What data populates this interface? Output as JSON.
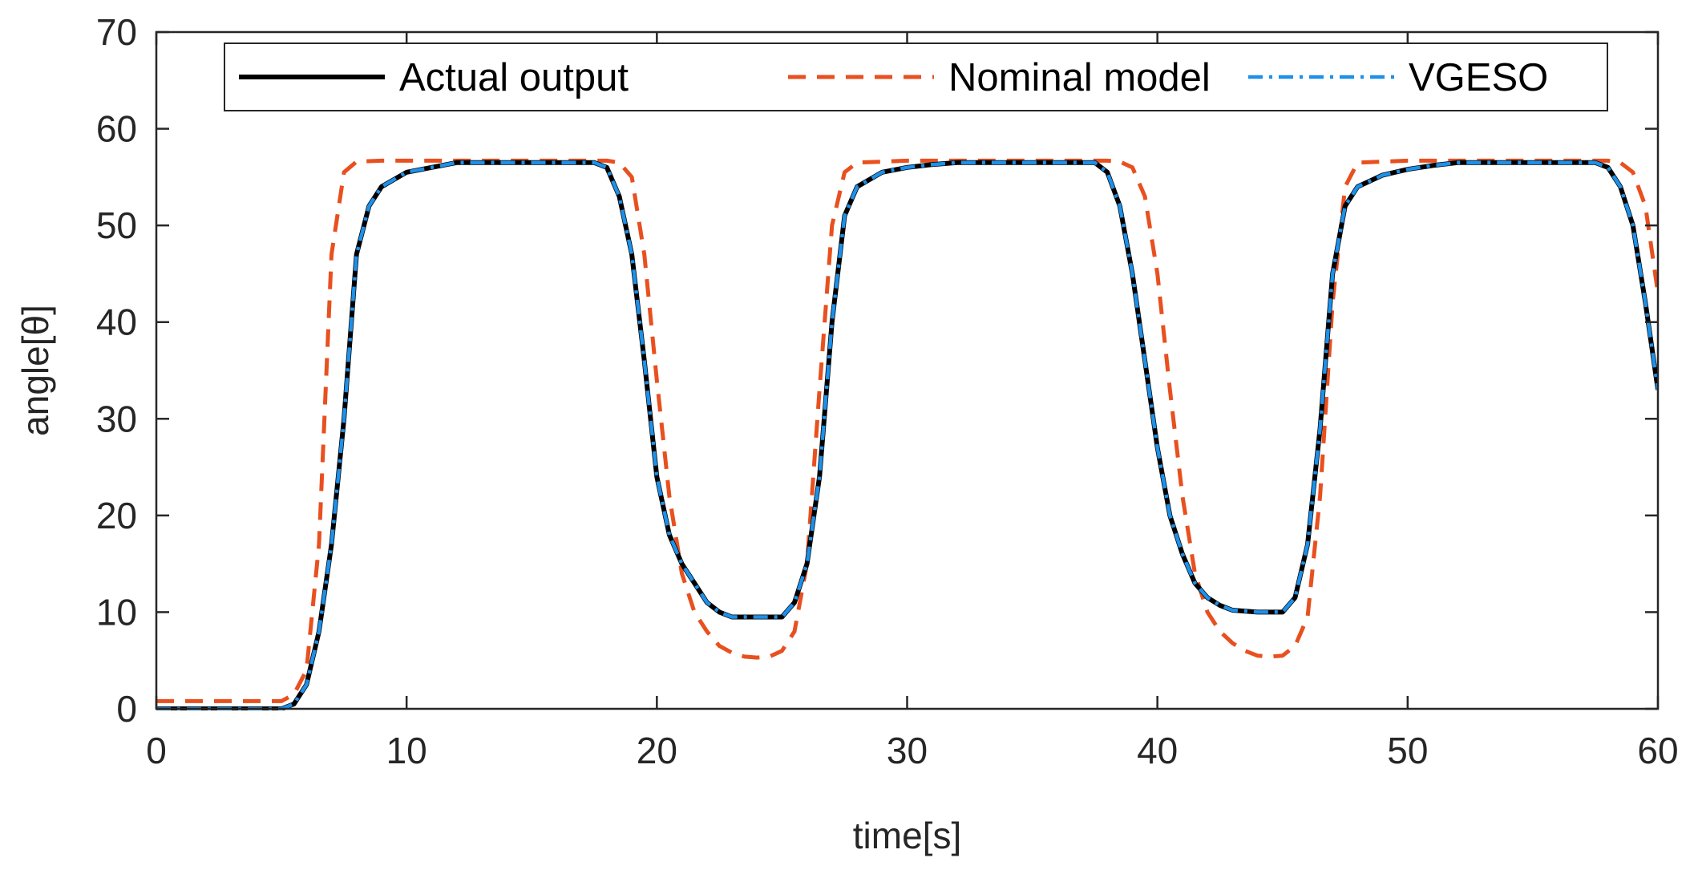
{
  "chart_data": {
    "type": "line",
    "title": "",
    "xlabel": "time[s]",
    "ylabel": "angle[θ]",
    "xlim": [
      0,
      60
    ],
    "ylim": [
      0,
      70
    ],
    "xticks": [
      0,
      10,
      20,
      30,
      40,
      50,
      60
    ],
    "yticks": [
      0,
      10,
      20,
      30,
      40,
      50,
      60,
      70
    ],
    "xtick_labels": [
      "0",
      "10",
      "20",
      "30",
      "40",
      "50",
      "60"
    ],
    "ytick_labels": [
      "0",
      "10",
      "20",
      "30",
      "40",
      "50",
      "60",
      "70"
    ],
    "grid": false,
    "legend_position": "top, inside, horizontal",
    "series": [
      {
        "name": "Actual output",
        "color": "#000000",
        "style": "solid",
        "x": [
          0,
          5,
          5.5,
          6,
          6.5,
          7,
          7.5,
          8,
          8.5,
          9,
          10,
          11,
          12,
          14,
          16,
          17.5,
          18,
          18.5,
          19,
          19.5,
          20,
          20.5,
          21,
          21.5,
          22,
          22.5,
          23,
          24,
          25,
          25.5,
          26,
          26.5,
          27,
          27.5,
          28,
          29,
          30,
          31,
          32,
          34,
          36,
          37.5,
          38,
          38.5,
          39,
          39.5,
          40,
          40.5,
          41,
          41.5,
          42,
          42.5,
          43,
          44,
          45,
          45.5,
          46,
          46.5,
          47,
          47.5,
          48,
          49,
          50,
          51,
          52,
          54,
          56,
          57.5,
          58,
          58.5,
          59,
          59.5,
          60
        ],
        "values": [
          0,
          0,
          0.5,
          2.5,
          8,
          17,
          30,
          47,
          52,
          54,
          55.5,
          56,
          56.5,
          56.5,
          56.5,
          56.5,
          56,
          53,
          47,
          36,
          24,
          18,
          15,
          13,
          11,
          10,
          9.5,
          9.5,
          9.5,
          11,
          15,
          24,
          40,
          51,
          54,
          55.5,
          56,
          56.3,
          56.5,
          56.5,
          56.5,
          56.5,
          55.5,
          52,
          45,
          36,
          27,
          20,
          16,
          13,
          11.5,
          10.7,
          10.2,
          10,
          10,
          11.5,
          17,
          29,
          45,
          52,
          54,
          55.2,
          55.8,
          56.2,
          56.5,
          56.5,
          56.5,
          56.5,
          56,
          54,
          50,
          42,
          33
        ]
      },
      {
        "name": "Nominal model",
        "color": "#E8501F",
        "style": "dashed",
        "x": [
          0,
          5,
          5.5,
          6,
          6.5,
          7,
          7.5,
          8,
          9,
          10,
          12,
          14,
          16,
          18,
          18.5,
          19,
          19.5,
          20,
          20.5,
          21,
          21.5,
          22,
          22.5,
          23,
          23.5,
          24,
          24.5,
          25,
          25.5,
          26,
          26.5,
          27,
          27.5,
          28,
          30,
          32,
          34,
          36,
          38,
          38.5,
          39,
          39.5,
          40,
          40.5,
          41,
          41.5,
          42,
          42.5,
          43,
          43.5,
          44,
          44.5,
          45,
          45.5,
          46,
          46.5,
          47,
          47.5,
          48,
          50,
          52,
          54,
          56,
          58,
          58.5,
          59,
          59.5,
          60
        ],
        "values": [
          0.8,
          0.8,
          1.5,
          4,
          17,
          47,
          55.5,
          56.6,
          56.7,
          56.7,
          56.7,
          56.7,
          56.7,
          56.7,
          56.5,
          55,
          47,
          34,
          22,
          14,
          10,
          8,
          6.5,
          5.8,
          5.4,
          5.3,
          5.4,
          6,
          8,
          15,
          33,
          50,
          55.5,
          56.5,
          56.7,
          56.7,
          56.7,
          56.7,
          56.7,
          56.6,
          56,
          53,
          45,
          33,
          22,
          14,
          10,
          8,
          6.8,
          6,
          5.5,
          5.4,
          5.5,
          6.5,
          9.5,
          22,
          42,
          54,
          56.5,
          56.7,
          56.7,
          56.7,
          56.7,
          56.7,
          56.5,
          55.5,
          52,
          43
        ]
      },
      {
        "name": "VGESO",
        "color": "#1E90E8",
        "style": "dashdot",
        "x": [
          0,
          5,
          5.5,
          6,
          6.5,
          7,
          7.5,
          8,
          8.5,
          9,
          10,
          11,
          12,
          14,
          16,
          17.5,
          18,
          18.5,
          19,
          19.5,
          20,
          20.5,
          21,
          21.5,
          22,
          22.5,
          23,
          24,
          25,
          25.5,
          26,
          26.5,
          27,
          27.5,
          28,
          29,
          30,
          31,
          32,
          34,
          36,
          37.5,
          38,
          38.5,
          39,
          39.5,
          40,
          40.5,
          41,
          41.5,
          42,
          42.5,
          43,
          44,
          45,
          45.5,
          46,
          46.5,
          47,
          47.5,
          48,
          49,
          50,
          51,
          52,
          54,
          56,
          57.5,
          58,
          58.5,
          59,
          59.5,
          60
        ],
        "values": [
          0,
          0,
          0.5,
          2.5,
          8,
          17,
          30,
          47,
          52,
          54,
          55.5,
          56,
          56.5,
          56.5,
          56.5,
          56.5,
          56,
          53,
          47,
          36,
          24,
          18,
          15,
          13,
          11,
          10,
          9.5,
          9.5,
          9.5,
          11,
          15,
          24,
          40,
          51,
          54,
          55.5,
          56,
          56.3,
          56.5,
          56.5,
          56.5,
          56.5,
          55.5,
          52,
          45,
          36,
          27,
          20,
          16,
          13,
          11.5,
          10.7,
          10.2,
          10,
          10,
          11.5,
          17,
          29,
          45,
          52,
          54,
          55.2,
          55.8,
          56.2,
          56.5,
          56.5,
          56.5,
          56.5,
          56,
          54,
          50,
          42,
          33
        ]
      }
    ]
  }
}
